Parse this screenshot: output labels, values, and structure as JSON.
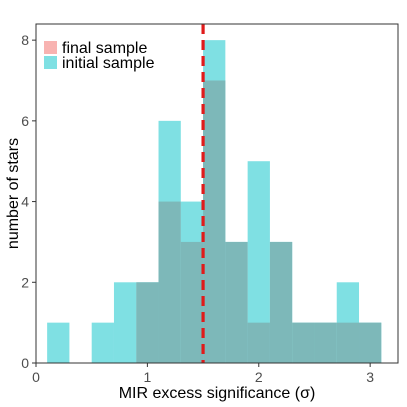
{
  "chart_data": {
    "type": "histogram",
    "xlabel": "MIR excess significance (σ)",
    "ylabel": "number of stars",
    "xlim": [
      0,
      3.25
    ],
    "ylim": [
      0,
      8.4
    ],
    "x_ticks": [
      0,
      1,
      2,
      3
    ],
    "y_ticks": [
      0,
      2,
      4,
      6,
      8
    ],
    "bin_width": 0.2,
    "bin_edges": [
      0.1,
      0.3,
      0.5,
      0.7,
      0.9,
      1.1,
      1.3,
      1.5,
      1.7,
      1.9,
      2.1,
      2.3,
      2.5,
      2.7,
      2.9,
      3.1
    ],
    "series": [
      {
        "name": "initial sample",
        "color": "#7fe0e3",
        "values": [
          1,
          0,
          1,
          2,
          2,
          6,
          4,
          8,
          3,
          5,
          3,
          1,
          1,
          2,
          1
        ]
      },
      {
        "name": "final sample",
        "color": "#f8b3b1",
        "values": [
          0,
          0,
          0,
          0,
          2,
          4,
          3,
          7,
          3,
          1,
          3,
          1,
          1,
          1,
          1
        ]
      }
    ],
    "overlap_color": "#7db8b9",
    "reference_line": {
      "x": 1.5,
      "color": "#e01b1b",
      "style": "dashed"
    },
    "legend_position": "top-left",
    "grid": false
  }
}
